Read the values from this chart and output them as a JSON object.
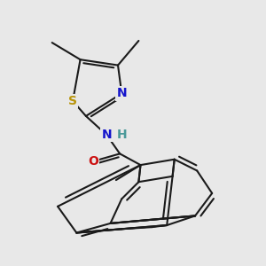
{
  "bg_color": "#e8e8e8",
  "line_color": "#1a1a1a",
  "bond_lw": 1.5,
  "dbo": 0.008,
  "S_color": "#b8940a",
  "N_color": "#1414cc",
  "H_color": "#4a9999",
  "O_color": "#cc1111",
  "label_fs": 10,
  "small_fs": 7,
  "figsize": [
    3.0,
    3.0
  ],
  "dpi": 100,
  "xlim": [
    0.0,
    1.0
  ],
  "ylim": [
    0.0,
    1.0
  ]
}
